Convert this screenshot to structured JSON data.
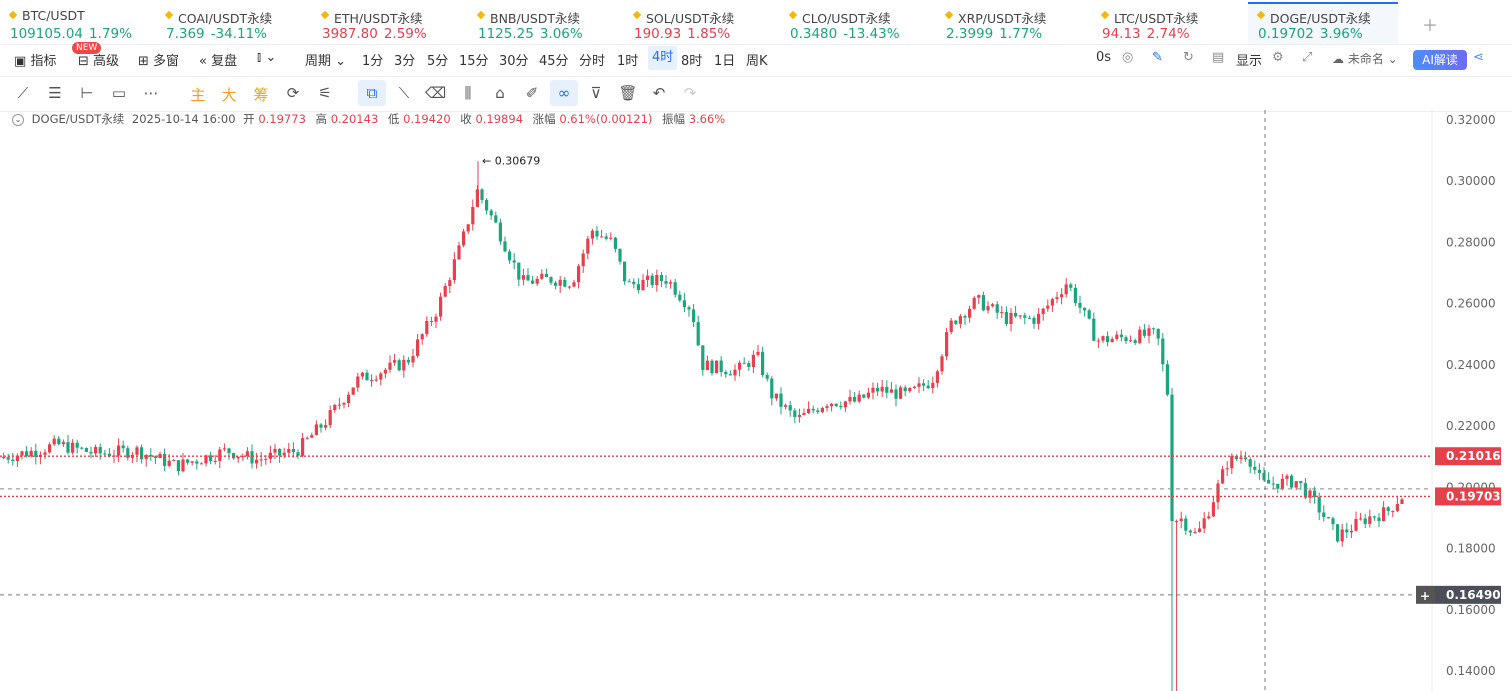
{
  "tickers": [
    {
      "name": "BTC/USDT",
      "price": "109105.04",
      "change": "1.79%",
      "dir": "up"
    },
    {
      "name": "COAI/USDT永续",
      "price": "7.369",
      "change": "-34.11%",
      "dir": "up"
    },
    {
      "name": "ETH/USDT永续",
      "price": "3987.80",
      "change": "2.59%",
      "dir": "dn"
    },
    {
      "name": "BNB/USDT永续",
      "price": "1125.25",
      "change": "3.06%",
      "dir": "up"
    },
    {
      "name": "SOL/USDT永续",
      "price": "190.93",
      "change": "1.85%",
      "dir": "dn"
    },
    {
      "name": "CLO/USDT永续",
      "price": "0.3480",
      "change": "-13.43%",
      "dir": "up"
    },
    {
      "name": "XRP/USDT永续",
      "price": "2.3999",
      "change": "1.77%",
      "dir": "up"
    },
    {
      "name": "LTC/USDT永续",
      "price": "94.13",
      "change": "2.74%",
      "dir": "dn"
    },
    {
      "name": "DOGE/USDT永续",
      "price": "0.19702",
      "change": "3.96%",
      "dir": "up"
    }
  ],
  "toolbar": {
    "indicators": "指标",
    "new_badge": "NEW",
    "advanced": "高级",
    "multi_window": "多窗",
    "replay": "复盘",
    "period": "周期",
    "intervals": [
      "1分",
      "3分",
      "5分",
      "15分",
      "30分",
      "45分",
      "分时",
      "1时",
      "4时",
      "8时",
      "1日",
      "周K"
    ],
    "selected_interval": "4时",
    "countdown": "0s",
    "display": "显示",
    "layout_name": "未命名",
    "ai_button": "AI解读"
  },
  "drawing_tools": {
    "main": "主",
    "large": "大",
    "chips": "筹"
  },
  "info": {
    "symbol": "DOGE/USDT永续",
    "datetime": "2025-10-14 16:00",
    "open_label": "开",
    "open": "0.19773",
    "high_label": "高",
    "high": "0.20143",
    "low_label": "低",
    "low": "0.19420",
    "close_label": "收",
    "close": "0.19894",
    "change_label": "涨幅",
    "change": "0.61%(0.00121)",
    "amp_label": "振幅",
    "amp": "3.66%"
  },
  "chart_data": {
    "type": "candlestick",
    "y_ticks": [
      "0.32000",
      "0.30000",
      "0.28000",
      "0.26000",
      "0.24000",
      "0.22000",
      "0.20000",
      "0.18000",
      "0.16000",
      "0.14000"
    ],
    "ylim": [
      0.1335,
      0.3232
    ],
    "price_lines": [
      {
        "label": "0.21016",
        "value": 0.21016,
        "color": "#e5404c"
      },
      {
        "label": "0.19703",
        "value": 0.19703,
        "color": "#e5404c"
      }
    ],
    "crosshair": {
      "label": "0.16490",
      "value": 0.1649
    },
    "high_marker": {
      "label": "0.30679",
      "value": 0.30679
    },
    "colors": {
      "up": "#e5404c",
      "down": "#1ba57d"
    }
  }
}
